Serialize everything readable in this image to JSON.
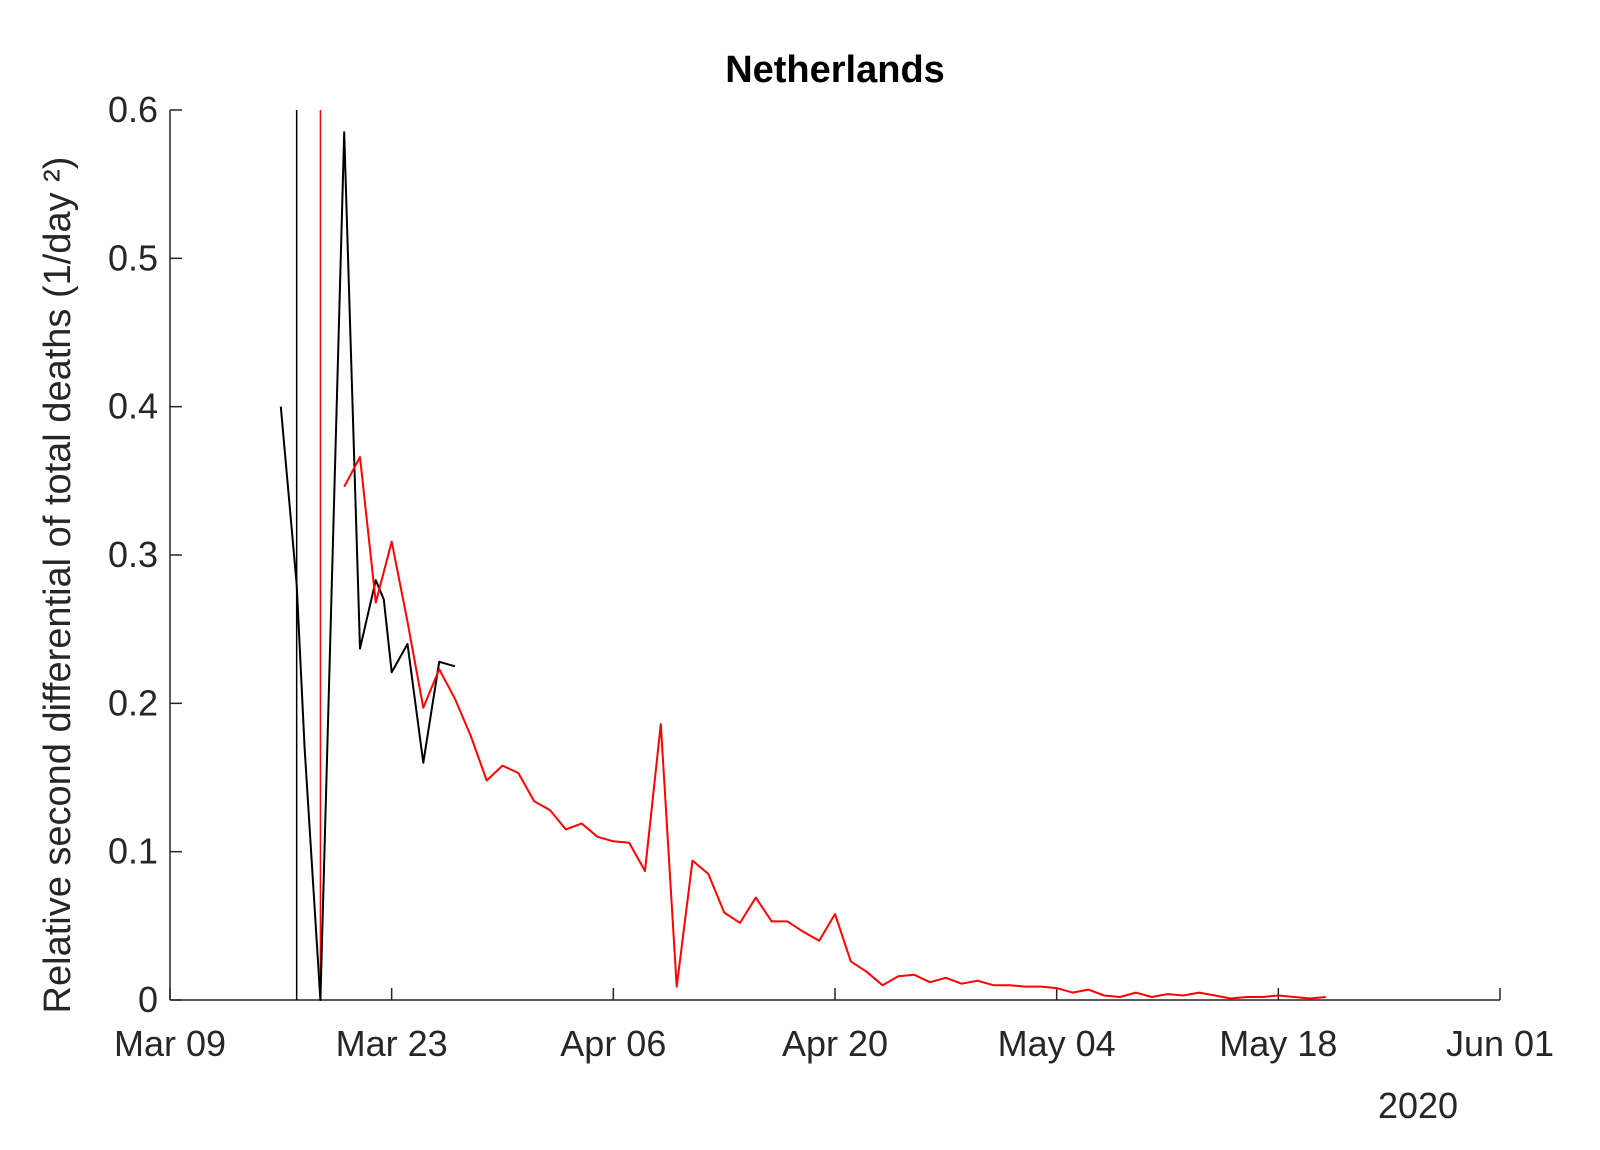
{
  "chart_data": {
    "type": "line",
    "title": "Netherlands",
    "ylabel": "Relative second differential of total deaths (1/day ²)",
    "xlabel": "",
    "year_label": "2020",
    "x_ticks": [
      "Mar 09",
      "Mar 23",
      "Apr 06",
      "Apr 20",
      "May 04",
      "May 18",
      "Jun 01"
    ],
    "y_ticks": [
      "0",
      "0.1",
      "0.2",
      "0.3",
      "0.4",
      "0.5",
      "0.6"
    ],
    "xlim": [
      "2020-03-09",
      "2020-06-01"
    ],
    "ylim": [
      0,
      0.6
    ],
    "grid": false,
    "vlines": [
      {
        "date": "2020-03-17",
        "color": "#000000"
      },
      {
        "date": "2020-03-18.5",
        "color": "#ff0000"
      }
    ],
    "series": [
      {
        "color": "#000000",
        "points": [
          [
            "2020-03-16",
            0.4
          ],
          [
            "2020-03-17",
            0.28
          ],
          [
            "2020-03-17.5",
            0.17
          ],
          [
            "2020-03-18.5",
            0.0
          ],
          [
            "2020-03-20",
            0.585
          ],
          [
            "2020-03-21",
            0.237
          ],
          [
            "2020-03-22",
            0.283
          ],
          [
            "2020-03-22.5",
            0.27
          ],
          [
            "2020-03-23",
            0.221
          ],
          [
            "2020-03-24",
            0.24
          ],
          [
            "2020-03-25",
            0.16
          ],
          [
            "2020-03-26",
            0.228
          ],
          [
            "2020-03-27",
            0.225
          ]
        ]
      },
      {
        "color": "#ff0000",
        "points": [
          [
            "2020-03-20",
            0.346
          ],
          [
            "2020-03-21",
            0.366
          ],
          [
            "2020-03-22",
            0.268
          ],
          [
            "2020-03-23",
            0.309
          ],
          [
            "2020-03-24",
            0.255
          ],
          [
            "2020-03-25",
            0.197
          ],
          [
            "2020-03-26",
            0.223
          ],
          [
            "2020-03-27",
            0.203
          ],
          [
            "2020-03-28",
            0.178
          ],
          [
            "2020-03-29",
            0.148
          ],
          [
            "2020-03-30",
            0.158
          ],
          [
            "2020-03-31",
            0.153
          ],
          [
            "2020-04-01",
            0.134
          ],
          [
            "2020-04-02",
            0.128
          ],
          [
            "2020-04-03",
            0.115
          ],
          [
            "2020-04-04",
            0.119
          ],
          [
            "2020-04-05",
            0.11
          ],
          [
            "2020-04-06",
            0.107
          ],
          [
            "2020-04-07",
            0.106
          ],
          [
            "2020-04-08",
            0.087
          ],
          [
            "2020-04-09",
            0.186
          ],
          [
            "2020-04-10",
            0.009
          ],
          [
            "2020-04-11",
            0.094
          ],
          [
            "2020-04-12",
            0.085
          ],
          [
            "2020-04-13",
            0.059
          ],
          [
            "2020-04-14",
            0.052
          ],
          [
            "2020-04-15",
            0.069
          ],
          [
            "2020-04-16",
            0.053
          ],
          [
            "2020-04-17",
            0.053
          ],
          [
            "2020-04-18",
            0.046
          ],
          [
            "2020-04-19",
            0.04
          ],
          [
            "2020-04-20",
            0.058
          ],
          [
            "2020-04-21",
            0.026
          ],
          [
            "2020-04-22",
            0.019
          ],
          [
            "2020-04-23",
            0.01
          ],
          [
            "2020-04-24",
            0.016
          ],
          [
            "2020-04-25",
            0.017
          ],
          [
            "2020-04-26",
            0.012
          ],
          [
            "2020-04-27",
            0.015
          ],
          [
            "2020-04-28",
            0.011
          ],
          [
            "2020-04-29",
            0.013
          ],
          [
            "2020-04-30",
            0.01
          ],
          [
            "2020-05-01",
            0.01
          ],
          [
            "2020-05-02",
            0.009
          ],
          [
            "2020-05-03",
            0.009
          ],
          [
            "2020-05-04",
            0.008
          ],
          [
            "2020-05-05",
            0.005
          ],
          [
            "2020-05-06",
            0.007
          ],
          [
            "2020-05-07",
            0.003
          ],
          [
            "2020-05-08",
            0.002
          ],
          [
            "2020-05-09",
            0.005
          ],
          [
            "2020-05-10",
            0.002
          ],
          [
            "2020-05-11",
            0.004
          ],
          [
            "2020-05-12",
            0.003
          ],
          [
            "2020-05-13",
            0.005
          ],
          [
            "2020-05-14",
            0.003
          ],
          [
            "2020-05-15",
            0.001
          ],
          [
            "2020-05-16",
            0.002
          ],
          [
            "2020-05-17",
            0.002
          ],
          [
            "2020-05-18",
            0.003
          ],
          [
            "2020-05-19",
            0.002
          ],
          [
            "2020-05-20",
            0.001
          ],
          [
            "2020-05-21",
            0.002
          ]
        ]
      }
    ],
    "colors": {
      "axis": "#262626",
      "black_series": "#000000",
      "red_series": "#ff0000"
    }
  }
}
